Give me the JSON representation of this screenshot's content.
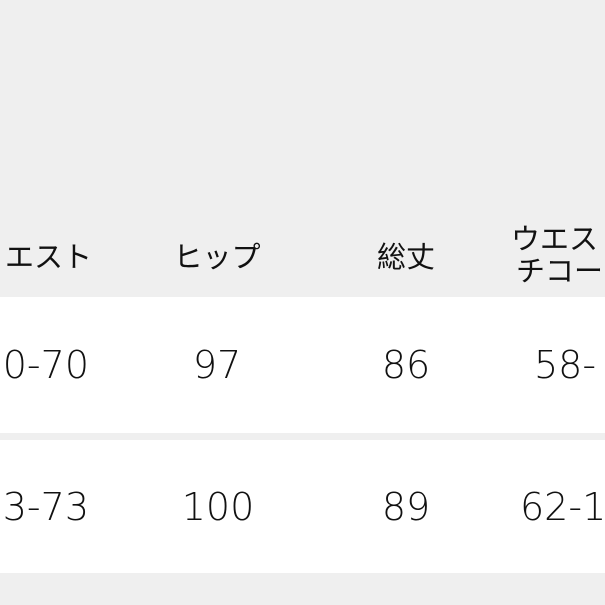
{
  "header": {
    "col_waist": "エスト",
    "col_hip": "ヒップ",
    "col_length": "総丈",
    "col_waist_adjust_line1": "ウエス",
    "col_waist_adjust_line2": "チコー"
  },
  "rows": [
    {
      "waist": "0-70",
      "hip": "97",
      "length": "86",
      "waist_adjust": "58-"
    },
    {
      "waist": "3-73",
      "hip": "100",
      "length": "89",
      "waist_adjust": "62-1"
    }
  ]
}
